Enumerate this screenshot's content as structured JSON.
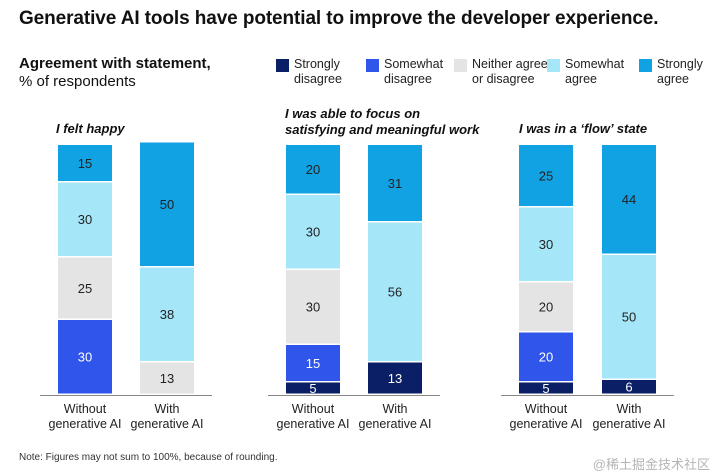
{
  "header": {
    "title": "Generative AI tools have potential to improve the developer experience.",
    "subtitle_bold": "Agreement with statement,",
    "subtitle_rest": "% of respondents"
  },
  "legend": [
    {
      "label": "Strongly\ndisagree",
      "color": "#0b1f66"
    },
    {
      "label": "Somewhat\ndisagree",
      "color": "#2f55ea"
    },
    {
      "label": "Neither agree\nor disagree",
      "color": "#e4e4e4"
    },
    {
      "label": "Somewhat\nagree",
      "color": "#a6e6f9"
    },
    {
      "label": "Strongly\nagree",
      "color": "#10a2e3"
    }
  ],
  "chart_data": {
    "type": "bar",
    "stacked": true,
    "unit": "% of respondents",
    "series_names": [
      "Strongly disagree",
      "Somewhat disagree",
      "Neither agree or disagree",
      "Somewhat agree",
      "Strongly agree"
    ],
    "panels": [
      {
        "title": "I felt happy",
        "bars": [
          {
            "label": "Without\ngenerative AI",
            "values": [
              0,
              30,
              25,
              30,
              15
            ]
          },
          {
            "label": "With\ngenerative AI",
            "values": [
              0,
              0,
              13,
              38,
              50
            ]
          }
        ]
      },
      {
        "title": "I was able to focus on\nsatisfying and meaningful work",
        "bars": [
          {
            "label": "Without\ngenerative AI",
            "values": [
              5,
              15,
              30,
              30,
              20
            ]
          },
          {
            "label": "With\ngenerative AI",
            "values": [
              13,
              0,
              0,
              56,
              31
            ]
          }
        ]
      },
      {
        "title": "I was in a ‘flow’ state",
        "bars": [
          {
            "label": "Without\ngenerative AI",
            "values": [
              5,
              20,
              20,
              30,
              25
            ]
          },
          {
            "label": "With\ngenerative AI",
            "values": [
              6,
              0,
              0,
              50,
              44
            ]
          }
        ]
      }
    ]
  },
  "footer": {
    "note": "Note: Figures may not sum to 100%, because of rounding.",
    "watermark": "@稀土掘金技术社区"
  }
}
